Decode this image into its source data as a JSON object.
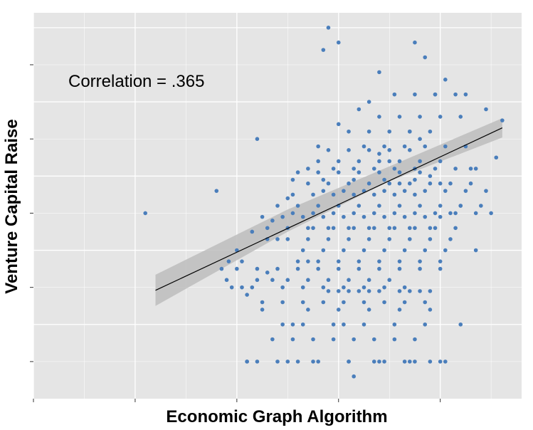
{
  "chart_data": {
    "type": "scatter",
    "title": "",
    "xlabel": "Economic Graph Algorithm",
    "ylabel": "Venture Capital Raise",
    "annotation": "Correlation = .365",
    "xlim": [
      -1,
      3.8
    ],
    "ylim": [
      -0.5,
      4.7
    ],
    "grid": true,
    "tick_labels_shown": false,
    "colors": {
      "panel": "#E5E5E5",
      "grid": "#FFFFFF",
      "point": "#4A7EBB",
      "band": "#BDBDBD",
      "line": "#000000"
    },
    "fit": {
      "x": [
        0.2,
        3.61
      ],
      "y": [
        0.96,
        3.15
      ]
    },
    "band": {
      "x": [
        0.2,
        1.5,
        2.5,
        3.61
      ],
      "upper": [
        1.17,
        2.05,
        2.63,
        3.28
      ],
      "lower": [
        0.75,
        1.75,
        2.43,
        3.02
      ]
    },
    "x": [
      0.1,
      0.8,
      0.9,
      0.92,
      1.0,
      1.15,
      1.1,
      1.3,
      1.35,
      1.2,
      1.5,
      1.7,
      1.8,
      2.0,
      2.2,
      2.3,
      2.4,
      2.5,
      2.6,
      2.7,
      2.8,
      2.9,
      3.0,
      3.1,
      3.2,
      3.3,
      1.9,
      1.85,
      2.85,
      2.95,
      3.05,
      3.25,
      3.45,
      3.55,
      3.61,
      1.05,
      1.1,
      1.2,
      1.4,
      1.6,
      1.75,
      2.1,
      2.15,
      2.35,
      2.45,
      2.65,
      2.75,
      2.9,
      3.05,
      3.2,
      3.35,
      3.5,
      1.45,
      1.55,
      1.65,
      1.95,
      2.05,
      2.25,
      2.55,
      2.85,
      1.9,
      2.0,
      2.1,
      2.2,
      2.3,
      2.4,
      2.6,
      2.7,
      2.8,
      2.9,
      1.6,
      1.7,
      1.8,
      2.0,
      2.2,
      2.4,
      2.6,
      2.8,
      3.0,
      1.3,
      1.4,
      1.5,
      1.7,
      1.9,
      2.1,
      2.3,
      2.5,
      2.7,
      2.9,
      3.1,
      1.25,
      1.45,
      1.65,
      1.85,
      2.05,
      2.25,
      2.45,
      2.65,
      2.85,
      3.0,
      1.55,
      1.75,
      1.95,
      2.15,
      2.35,
      2.55,
      2.75,
      1.6,
      1.8,
      2.0,
      2.2,
      2.4,
      2.6,
      2.8,
      1.9,
      2.1,
      2.3,
      2.5,
      2.7,
      1.2,
      1.35,
      1.5,
      1.7,
      1.9,
      2.1,
      2.3,
      2.5,
      1.65,
      1.85,
      2.05,
      2.25,
      2.45,
      2.65,
      2.85,
      3.05,
      1.75,
      1.95,
      2.15,
      2.35,
      2.55,
      2.75,
      2.95,
      3.15,
      1.4,
      1.6,
      1.8,
      2.0,
      2.2,
      2.4,
      2.6,
      2.8,
      3.0,
      3.2,
      3.4,
      1.7,
      1.9,
      2.1,
      2.3,
      2.5,
      2.7,
      2.9,
      3.1,
      3.3,
      1.8,
      2.0,
      2.2,
      2.4,
      2.6,
      2.8,
      3.0,
      2.1,
      2.3,
      2.5,
      2.7,
      2.9,
      1.55,
      1.75,
      1.95,
      2.15,
      2.35,
      2.55,
      2.75,
      2.95,
      3.15,
      3.35,
      1.85,
      2.05,
      2.25,
      2.45,
      2.65,
      2.85,
      3.05,
      3.25,
      3.45,
      1.95,
      2.15,
      2.35,
      2.55,
      2.75,
      2.95,
      3.15,
      3.35,
      2.25,
      2.45,
      2.65,
      2.85,
      3.05,
      3.25,
      2.4,
      2.6,
      2.8,
      3.0,
      3.2,
      2.55,
      2.75,
      2.95,
      3.15,
      1.25,
      1.45,
      1.65,
      1.85,
      2.05,
      2.25,
      2.45,
      2.65,
      2.85,
      1.35,
      1.55,
      1.75,
      1.95,
      2.15,
      2.35,
      2.55,
      2.75,
      0.95,
      1.05,
      1.15,
      1.45,
      1.65,
      1.85,
      2.05,
      2.25,
      2.45,
      2.65,
      0.85,
      1.0,
      1.2,
      1.4,
      1.6,
      1.8,
      2.0,
      2.2,
      2.4,
      2.6,
      2.8,
      3.0,
      1.3,
      1.5,
      1.7,
      1.9,
      2.1,
      2.3,
      2.5,
      2.7,
      2.9,
      1.55,
      1.85,
      2.15,
      2.45,
      2.75,
      1.1,
      1.5,
      1.8,
      2.1,
      2.4,
      2.7,
      3.0,
      1.25,
      1.7,
      2.0,
      2.3,
      2.6,
      2.9,
      2.0,
      2.4,
      2.75
    ],
    "y": [
      2.0,
      2.3,
      1.1,
      1.35,
      1.5,
      1.75,
      0.9,
      1.2,
      1.9,
      3.0,
      2.2,
      2.6,
      2.9,
      3.2,
      3.4,
      3.5,
      2.8,
      2.7,
      2.4,
      3.1,
      3.0,
      2.5,
      2.4,
      2.0,
      2.1,
      2.6,
      4.5,
      4.2,
      4.1,
      3.6,
      3.8,
      3.6,
      3.4,
      2.75,
      3.25,
      1.35,
      0.0,
      0.0,
      0.0,
      0.0,
      0.0,
      0.0,
      -0.2,
      0.0,
      0.0,
      0.0,
      0.0,
      0.0,
      0.0,
      0.5,
      1.5,
      2.0,
      0.5,
      0.5,
      0.5,
      0.5,
      0.5,
      0.5,
      0.5,
      0.5,
      0.95,
      0.95,
      0.95,
      0.95,
      0.95,
      0.95,
      0.95,
      0.95,
      0.95,
      0.95,
      1.35,
      1.35,
      1.35,
      1.35,
      1.35,
      1.35,
      1.35,
      1.35,
      1.35,
      1.65,
      1.65,
      1.65,
      1.65,
      1.65,
      1.65,
      1.65,
      1.65,
      1.65,
      1.65,
      1.65,
      1.95,
      1.95,
      1.95,
      1.95,
      1.95,
      1.95,
      1.95,
      1.95,
      1.95,
      1.95,
      2.25,
      2.25,
      2.25,
      2.25,
      2.25,
      2.25,
      2.25,
      2.55,
      2.55,
      2.55,
      2.55,
      2.55,
      2.55,
      2.55,
      2.85,
      2.85,
      2.85,
      2.85,
      2.85,
      1.1,
      1.1,
      1.1,
      1.1,
      1.1,
      1.1,
      1.1,
      1.1,
      1.5,
      1.5,
      1.5,
      1.5,
      1.5,
      1.5,
      1.5,
      1.5,
      1.8,
      1.8,
      1.8,
      1.8,
      1.8,
      1.8,
      1.8,
      1.8,
      2.1,
      2.1,
      2.1,
      2.1,
      2.1,
      2.1,
      2.1,
      2.1,
      2.1,
      2.1,
      2.1,
      2.4,
      2.4,
      2.4,
      2.4,
      2.4,
      2.4,
      2.4,
      2.4,
      2.4,
      2.7,
      2.7,
      2.7,
      2.7,
      2.7,
      2.7,
      2.7,
      3.1,
      3.1,
      3.1,
      3.1,
      3.1,
      2.0,
      2.0,
      2.0,
      2.0,
      2.0,
      2.0,
      2.0,
      2.0,
      2.0,
      2.0,
      2.3,
      2.3,
      2.3,
      2.3,
      2.3,
      2.3,
      2.3,
      2.3,
      2.3,
      2.6,
      2.6,
      2.6,
      2.6,
      2.6,
      2.6,
      2.6,
      2.6,
      2.9,
      2.9,
      2.9,
      2.9,
      2.9,
      2.9,
      3.3,
      3.3,
      3.3,
      3.3,
      3.3,
      3.6,
      3.6,
      3.6,
      3.6,
      0.8,
      0.8,
      0.8,
      0.8,
      0.8,
      0.8,
      0.8,
      0.8,
      0.8,
      0.3,
      0.3,
      0.3,
      0.3,
      0.3,
      0.3,
      0.3,
      0.3,
      1.0,
      1.0,
      1.0,
      1.0,
      1.0,
      1.0,
      1.0,
      1.0,
      1.0,
      1.0,
      1.25,
      1.25,
      1.25,
      1.25,
      1.25,
      1.25,
      1.25,
      1.25,
      1.25,
      1.25,
      1.25,
      1.25,
      1.8,
      1.8,
      1.8,
      1.8,
      1.8,
      1.8,
      1.8,
      1.8,
      1.8,
      2.45,
      2.45,
      2.45,
      2.45,
      2.45,
      0.0,
      0.0,
      0.0,
      0.0,
      0.0,
      0.0,
      0.0,
      0.7,
      0.7,
      0.7,
      0.7,
      0.7,
      0.7,
      4.3,
      3.9,
      4.3
    ]
  }
}
